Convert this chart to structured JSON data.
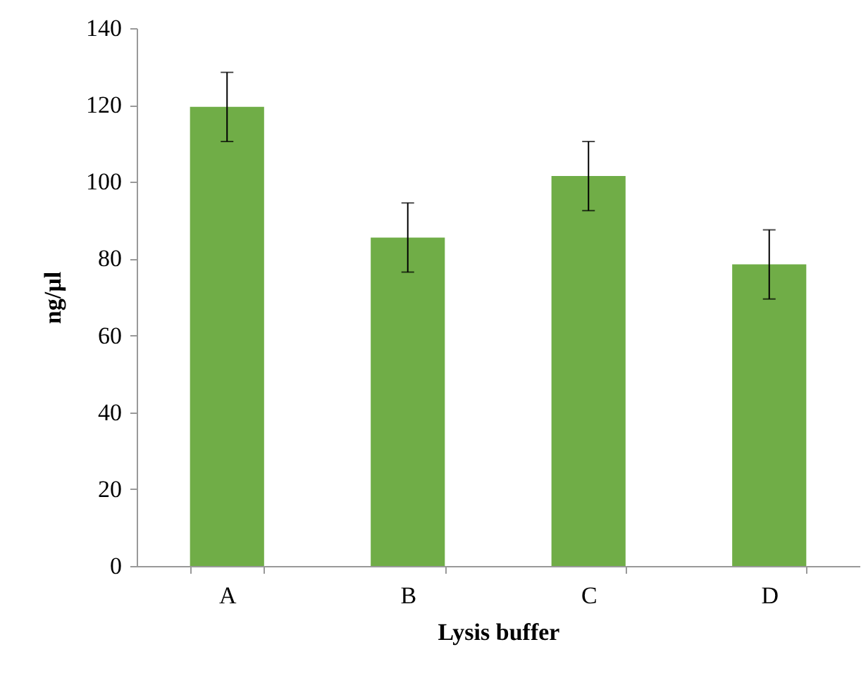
{
  "chart_data": {
    "type": "bar",
    "xlabel": "Lysis buffer",
    "ylabel": "ng/µl",
    "categories": [
      "A",
      "B",
      "C",
      "D"
    ],
    "values": [
      119.5,
      85.5,
      101.5,
      78.5
    ],
    "errors": [
      9,
      9,
      9,
      9
    ],
    "color": "#70ad47",
    "ylim": [
      0,
      140
    ],
    "yticks": [
      0,
      20,
      40,
      60,
      80,
      100,
      120,
      140
    ],
    "grid": false
  }
}
